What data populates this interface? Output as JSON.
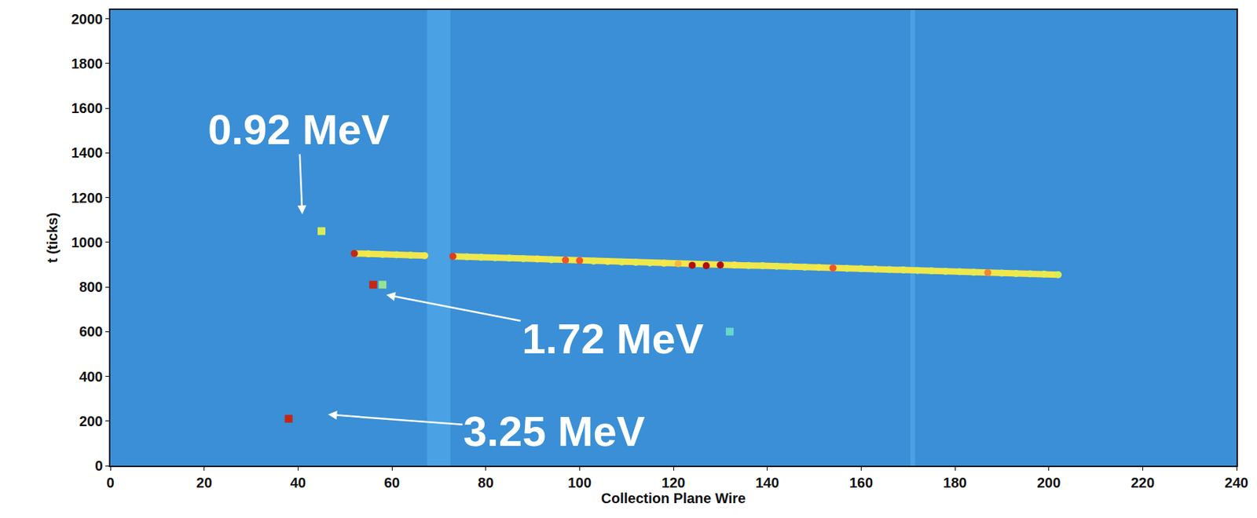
{
  "chart_data": {
    "type": "scatter",
    "xlabel": "Collection Plane Wire",
    "ylabel": "t (ticks)",
    "xlim": [
      0,
      240
    ],
    "xticks": [
      0,
      20,
      40,
      60,
      80,
      100,
      120,
      140,
      160,
      180,
      200,
      220,
      240
    ],
    "ylim": [
      0,
      2040
    ],
    "yticks": [
      0,
      200,
      400,
      600,
      800,
      1000,
      1200,
      1400,
      1600,
      1800,
      2000
    ],
    "grid": false,
    "tick_labels": true,
    "charge_range": [
      0,
      1
    ],
    "dead_wires": [
      [
        67.5,
        72.5
      ],
      [
        170.5,
        171.5
      ]
    ],
    "series": [
      {
        "type": "line",
        "color": "#f2e64a",
        "marker": "circle",
        "x": [
          52,
          55,
          58,
          61,
          64,
          67,
          70,
          73,
          76,
          79,
          82,
          85,
          88,
          91,
          94,
          97,
          100,
          103,
          106,
          109,
          112,
          115,
          118,
          121,
          124,
          127,
          130,
          133,
          136,
          139,
          142,
          145,
          148,
          151,
          154,
          157,
          160,
          163,
          166,
          169,
          172,
          175,
          178,
          181,
          184,
          187,
          190,
          193,
          196,
          199,
          202
        ],
        "values": [
          950,
          948,
          946,
          944,
          942,
          940,
          null,
          937,
          935,
          933,
          931,
          929,
          927,
          925,
          922,
          920,
          918,
          916,
          914,
          912,
          910,
          908,
          906,
          904,
          897,
          895,
          898,
          898,
          896,
          895,
          893,
          891,
          889,
          887,
          885,
          883,
          882,
          880,
          878,
          876,
          874,
          872,
          870,
          868,
          866,
          864,
          862,
          860,
          859,
          857,
          855
        ],
        "charge": [
          0.95,
          0.7,
          0.65,
          0.65,
          0.65,
          0.7,
          null,
          0.9,
          0.65,
          0.65,
          0.65,
          0.65,
          0.65,
          0.7,
          0.65,
          0.85,
          0.85,
          0.65,
          0.7,
          0.65,
          0.65,
          0.65,
          0.7,
          0.75,
          1.0,
          1.0,
          1.0,
          0.7,
          0.65,
          0.65,
          0.65,
          0.65,
          0.65,
          0.7,
          0.85,
          0.65,
          0.65,
          0.65,
          0.65,
          0.65,
          0.65,
          0.65,
          0.65,
          0.65,
          0.65,
          0.8,
          0.65,
          0.65,
          0.65,
          0.65,
          0.6
        ]
      },
      {
        "type": "scatter",
        "color": "#f2e64a",
        "marker": "square",
        "x": [
          45,
          56,
          58,
          38,
          132
        ],
        "values": [
          1050,
          810,
          810,
          210,
          600
        ],
        "charge": [
          0.6,
          0.95,
          0.45,
          0.95,
          0.35
        ]
      }
    ],
    "annotations": [
      {
        "text": "0.92 MeV",
        "x": 40.9,
        "y": 1125
      },
      {
        "text": "1.72 MeV",
        "x": 58.8,
        "y": 765
      },
      {
        "text": "3.25 MeV",
        "x": 46.4,
        "y": 229
      }
    ]
  }
}
